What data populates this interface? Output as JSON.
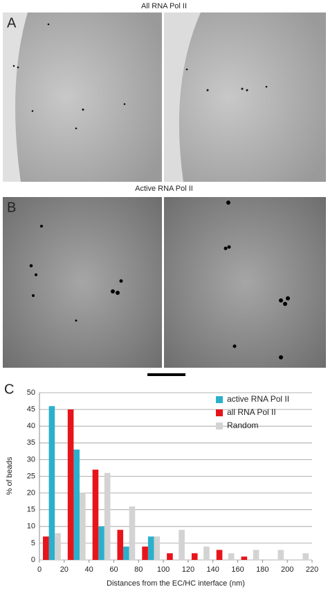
{
  "figure": {
    "top_title": "All RNA Pol II",
    "panel_a": "A",
    "middle_title": "Active RNA Pol II",
    "panel_b": "B",
    "panel_c": "C"
  },
  "chart_data": {
    "type": "bar",
    "x_label": "Distances from the EC/HC interface (nm)",
    "y_label": "% of beads",
    "x": [
      10,
      30,
      50,
      70,
      90,
      110,
      130,
      150,
      170,
      190,
      210
    ],
    "series": [
      {
        "name": "active RNA Pol II",
        "color": "#2bb0cc",
        "values": [
          46,
          33,
          10,
          4,
          7,
          0,
          0,
          0,
          0,
          0,
          0
        ]
      },
      {
        "name": "all RNA Pol II",
        "color": "#e8141b",
        "values": [
          7,
          45,
          27,
          9,
          4,
          2,
          2,
          3,
          1,
          0,
          0
        ]
      },
      {
        "name": "Random",
        "color": "#d3d3d3",
        "values": [
          8,
          20,
          26,
          16,
          7,
          9,
          4,
          2,
          3,
          3,
          2
        ]
      }
    ],
    "xlim": [
      0,
      220
    ],
    "xticks": [
      0,
      20,
      40,
      60,
      80,
      100,
      120,
      140,
      160,
      180,
      200,
      220
    ],
    "ylim": [
      0,
      50
    ],
    "yticks": [
      0,
      5,
      10,
      15,
      20,
      25,
      30,
      35,
      40,
      45,
      50
    ],
    "grid": true,
    "legend": "top-right"
  }
}
